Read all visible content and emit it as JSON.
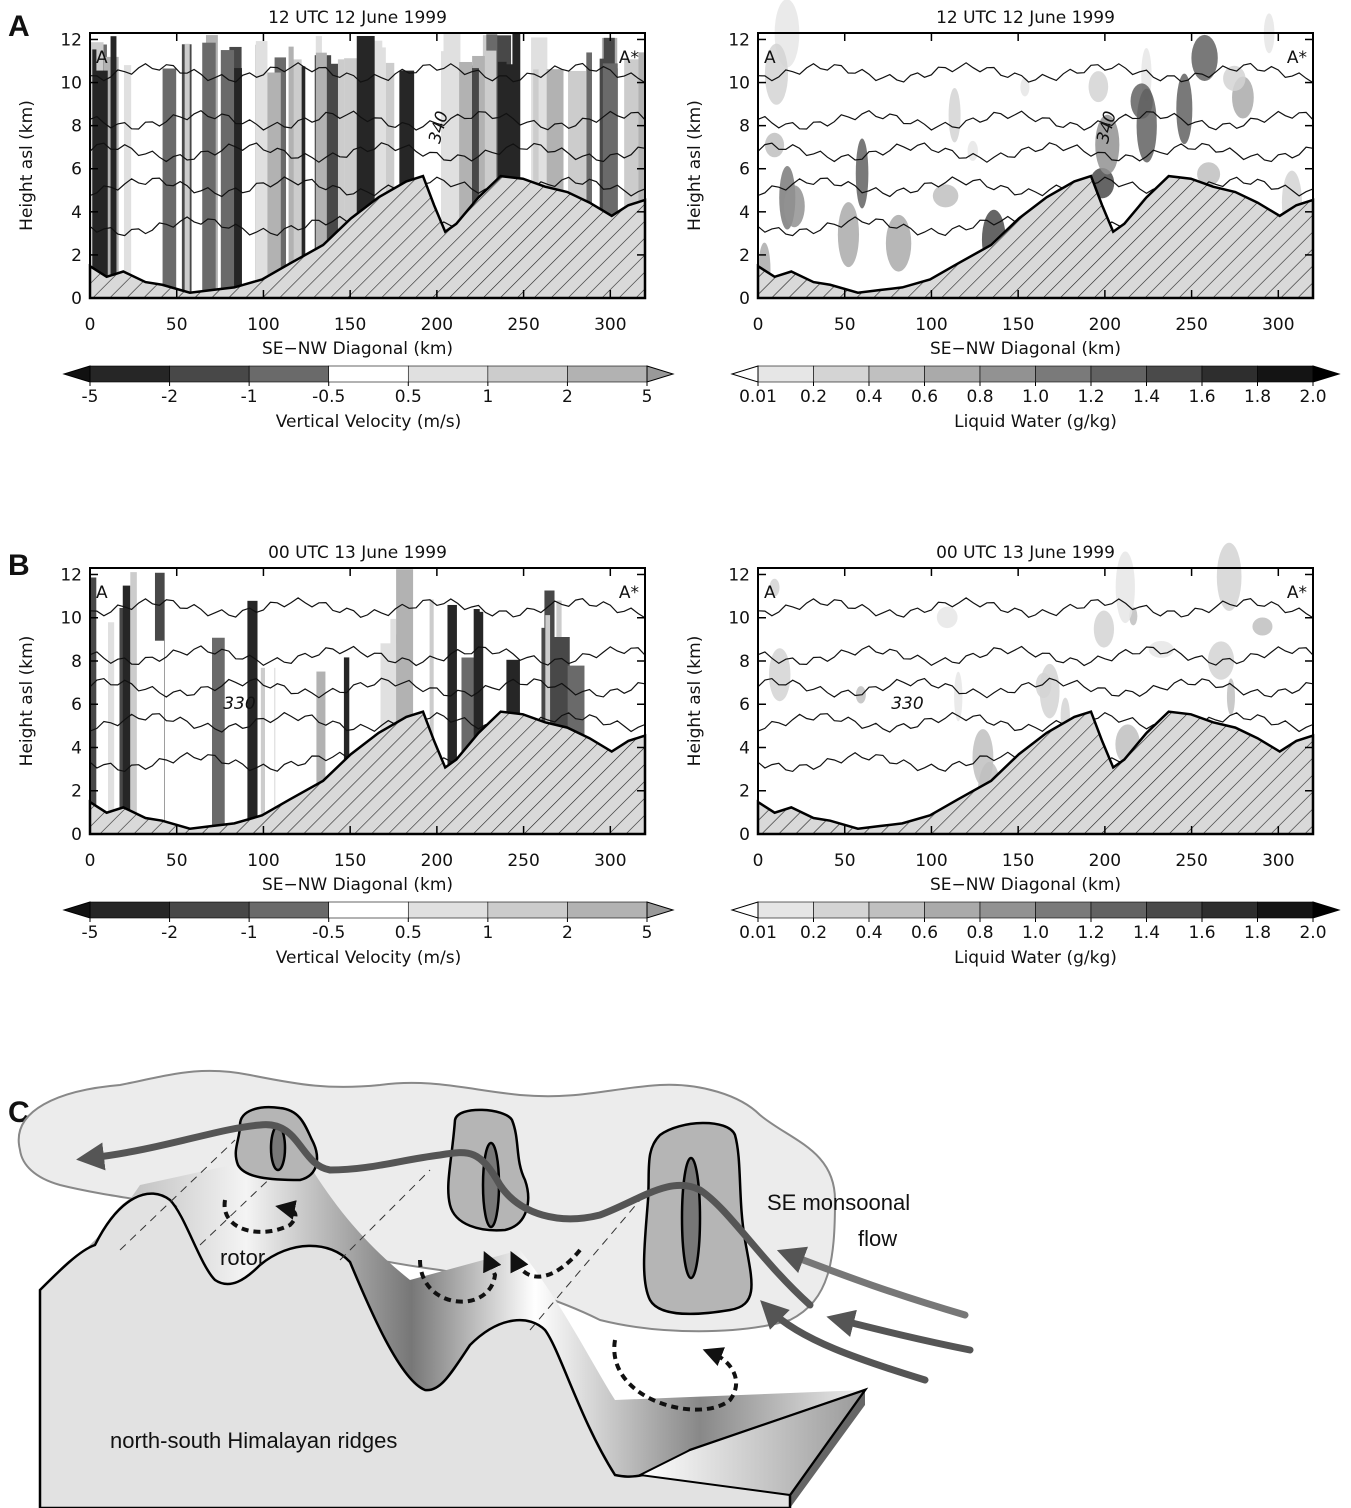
{
  "panel_labels": [
    "A",
    "B",
    "C"
  ],
  "chart_data": [
    {
      "type": "contour",
      "title": "12 UTC 12 June 1999",
      "x_label": "SE−NW Diagonal (km)",
      "y_label": "Height asl (km)",
      "xlim": [
        0,
        320
      ],
      "ylim": [
        0,
        12.3
      ],
      "xticks": [
        0,
        50,
        100,
        150,
        200,
        250,
        300
      ],
      "yticks": [
        0,
        2,
        4,
        6,
        8,
        10,
        12
      ],
      "endpoint_labels": [
        "A",
        "A*"
      ],
      "contour_label": 340,
      "colorbar": {
        "label": "Vertical Velocity (m/s)",
        "ticks": [
          -5,
          -2,
          -1,
          -0.5,
          0.5,
          1,
          2,
          5
        ],
        "colors": [
          "#262626",
          "#484848",
          "#6a6a6a",
          "#ffffff",
          "#e0e0e0",
          "#cccccc",
          "#b2b2b2"
        ],
        "extend_colors": [
          "#111111",
          "#999999"
        ]
      }
    },
    {
      "type": "contour",
      "title": "12 UTC 12 June 1999",
      "x_label": "SE−NW Diagonal (km)",
      "y_label": "Height asl (km)",
      "xlim": [
        0,
        320
      ],
      "ylim": [
        0,
        12.3
      ],
      "xticks": [
        0,
        50,
        100,
        150,
        200,
        250,
        300
      ],
      "yticks": [
        0,
        2,
        4,
        6,
        8,
        10,
        12
      ],
      "endpoint_labels": [
        "A",
        "A*"
      ],
      "contour_label": 340,
      "colorbar": {
        "label": "Liquid Water (g/kg)",
        "ticks": [
          0.01,
          0.2,
          0.4,
          0.6,
          0.8,
          {
            "value": 1,
            "label": "1.0"
          },
          1.2,
          1.4,
          1.6,
          1.8,
          {
            "value": 2,
            "label": "2.0"
          }
        ],
        "colors": [
          "#e6e6e6",
          "#d4d4d4",
          "#c0c0c0",
          "#aaaaaa",
          "#929292",
          "#7a7a7a",
          "#626262",
          "#4a4a4a",
          "#2e2e2e",
          "#141414"
        ],
        "extend_colors": [
          "#ffffff",
          "#000000"
        ]
      }
    },
    {
      "type": "contour",
      "title": "00 UTC 13 June 1999",
      "x_label": "SE−NW Diagonal (km)",
      "y_label": "Height asl (km)",
      "xlim": [
        0,
        320
      ],
      "ylim": [
        0,
        12.3
      ],
      "xticks": [
        0,
        50,
        100,
        150,
        200,
        250,
        300
      ],
      "yticks": [
        0,
        2,
        4,
        6,
        8,
        10,
        12
      ],
      "endpoint_labels": [
        "A",
        "A*"
      ],
      "contour_label": 330,
      "colorbar": {
        "label": "Vertical Velocity (m/s)",
        "ticks": [
          -5,
          -2,
          -1,
          -0.5,
          0.5,
          1,
          2,
          5
        ],
        "colors": [
          "#262626",
          "#484848",
          "#6a6a6a",
          "#ffffff",
          "#e0e0e0",
          "#cccccc",
          "#b2b2b2"
        ],
        "extend_colors": [
          "#111111",
          "#999999"
        ]
      }
    },
    {
      "type": "contour",
      "title": "00 UTC 13 June 1999",
      "x_label": "SE−NW Diagonal (km)",
      "y_label": "Height asl (km)",
      "xlim": [
        0,
        320
      ],
      "ylim": [
        0,
        12.3
      ],
      "xticks": [
        0,
        50,
        100,
        150,
        200,
        250,
        300
      ],
      "yticks": [
        0,
        2,
        4,
        6,
        8,
        10,
        12
      ],
      "endpoint_labels": [
        "A",
        "A*"
      ],
      "contour_label": 330,
      "colorbar": {
        "label": "Liquid Water (g/kg)",
        "ticks": [
          0.01,
          0.2,
          0.4,
          0.6,
          0.8,
          {
            "value": 1,
            "label": "1.0"
          },
          1.2,
          1.4,
          1.6,
          1.8,
          {
            "value": 2,
            "label": "2.0"
          }
        ],
        "colors": [
          "#e6e6e6",
          "#d4d4d4",
          "#c0c0c0",
          "#aaaaaa",
          "#929292",
          "#7a7a7a",
          "#626262",
          "#4a4a4a",
          "#2e2e2e",
          "#141414"
        ],
        "extend_colors": [
          "#ffffff",
          "#000000"
        ]
      }
    }
  ],
  "diagram": {
    "labels": [
      "rotor",
      "SE monsoonal",
      "flow",
      "north-south Himalayan ridges"
    ]
  }
}
